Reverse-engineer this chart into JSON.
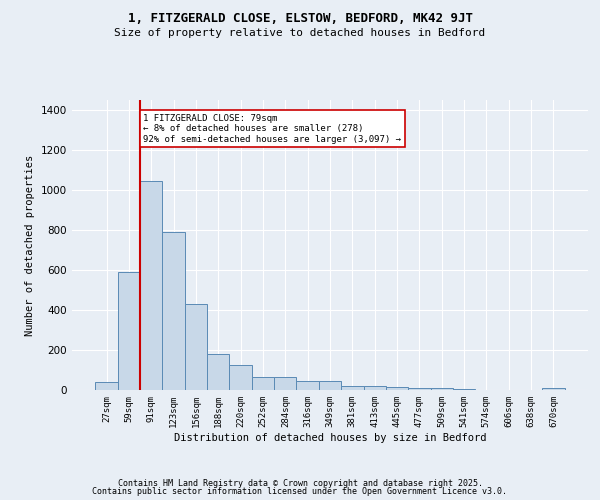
{
  "title": "1, FITZGERALD CLOSE, ELSTOW, BEDFORD, MK42 9JT",
  "subtitle": "Size of property relative to detached houses in Bedford",
  "xlabel": "Distribution of detached houses by size in Bedford",
  "ylabel": "Number of detached properties",
  "categories": [
    "27sqm",
    "59sqm",
    "91sqm",
    "123sqm",
    "156sqm",
    "188sqm",
    "220sqm",
    "252sqm",
    "284sqm",
    "316sqm",
    "349sqm",
    "381sqm",
    "413sqm",
    "445sqm",
    "477sqm",
    "509sqm",
    "541sqm",
    "574sqm",
    "606sqm",
    "638sqm",
    "670sqm"
  ],
  "values": [
    40,
    590,
    1045,
    790,
    430,
    180,
    125,
    65,
    65,
    45,
    45,
    22,
    22,
    17,
    10,
    8,
    5,
    0,
    0,
    0,
    10
  ],
  "bar_color": "#c8d8e8",
  "bar_edge_color": "#5a8ab5",
  "vline_x": 1.5,
  "vline_color": "#cc0000",
  "annotation_text": "1 FITZGERALD CLOSE: 79sqm\n← 8% of detached houses are smaller (278)\n92% of semi-detached houses are larger (3,097) →",
  "annotation_box_color": "#ffffff",
  "annotation_box_edge": "#cc0000",
  "ylim": [
    0,
    1450
  ],
  "background_color": "#e8eef5",
  "grid_color": "#ffffff",
  "footer1": "Contains HM Land Registry data © Crown copyright and database right 2025.",
  "footer2": "Contains public sector information licensed under the Open Government Licence v3.0."
}
